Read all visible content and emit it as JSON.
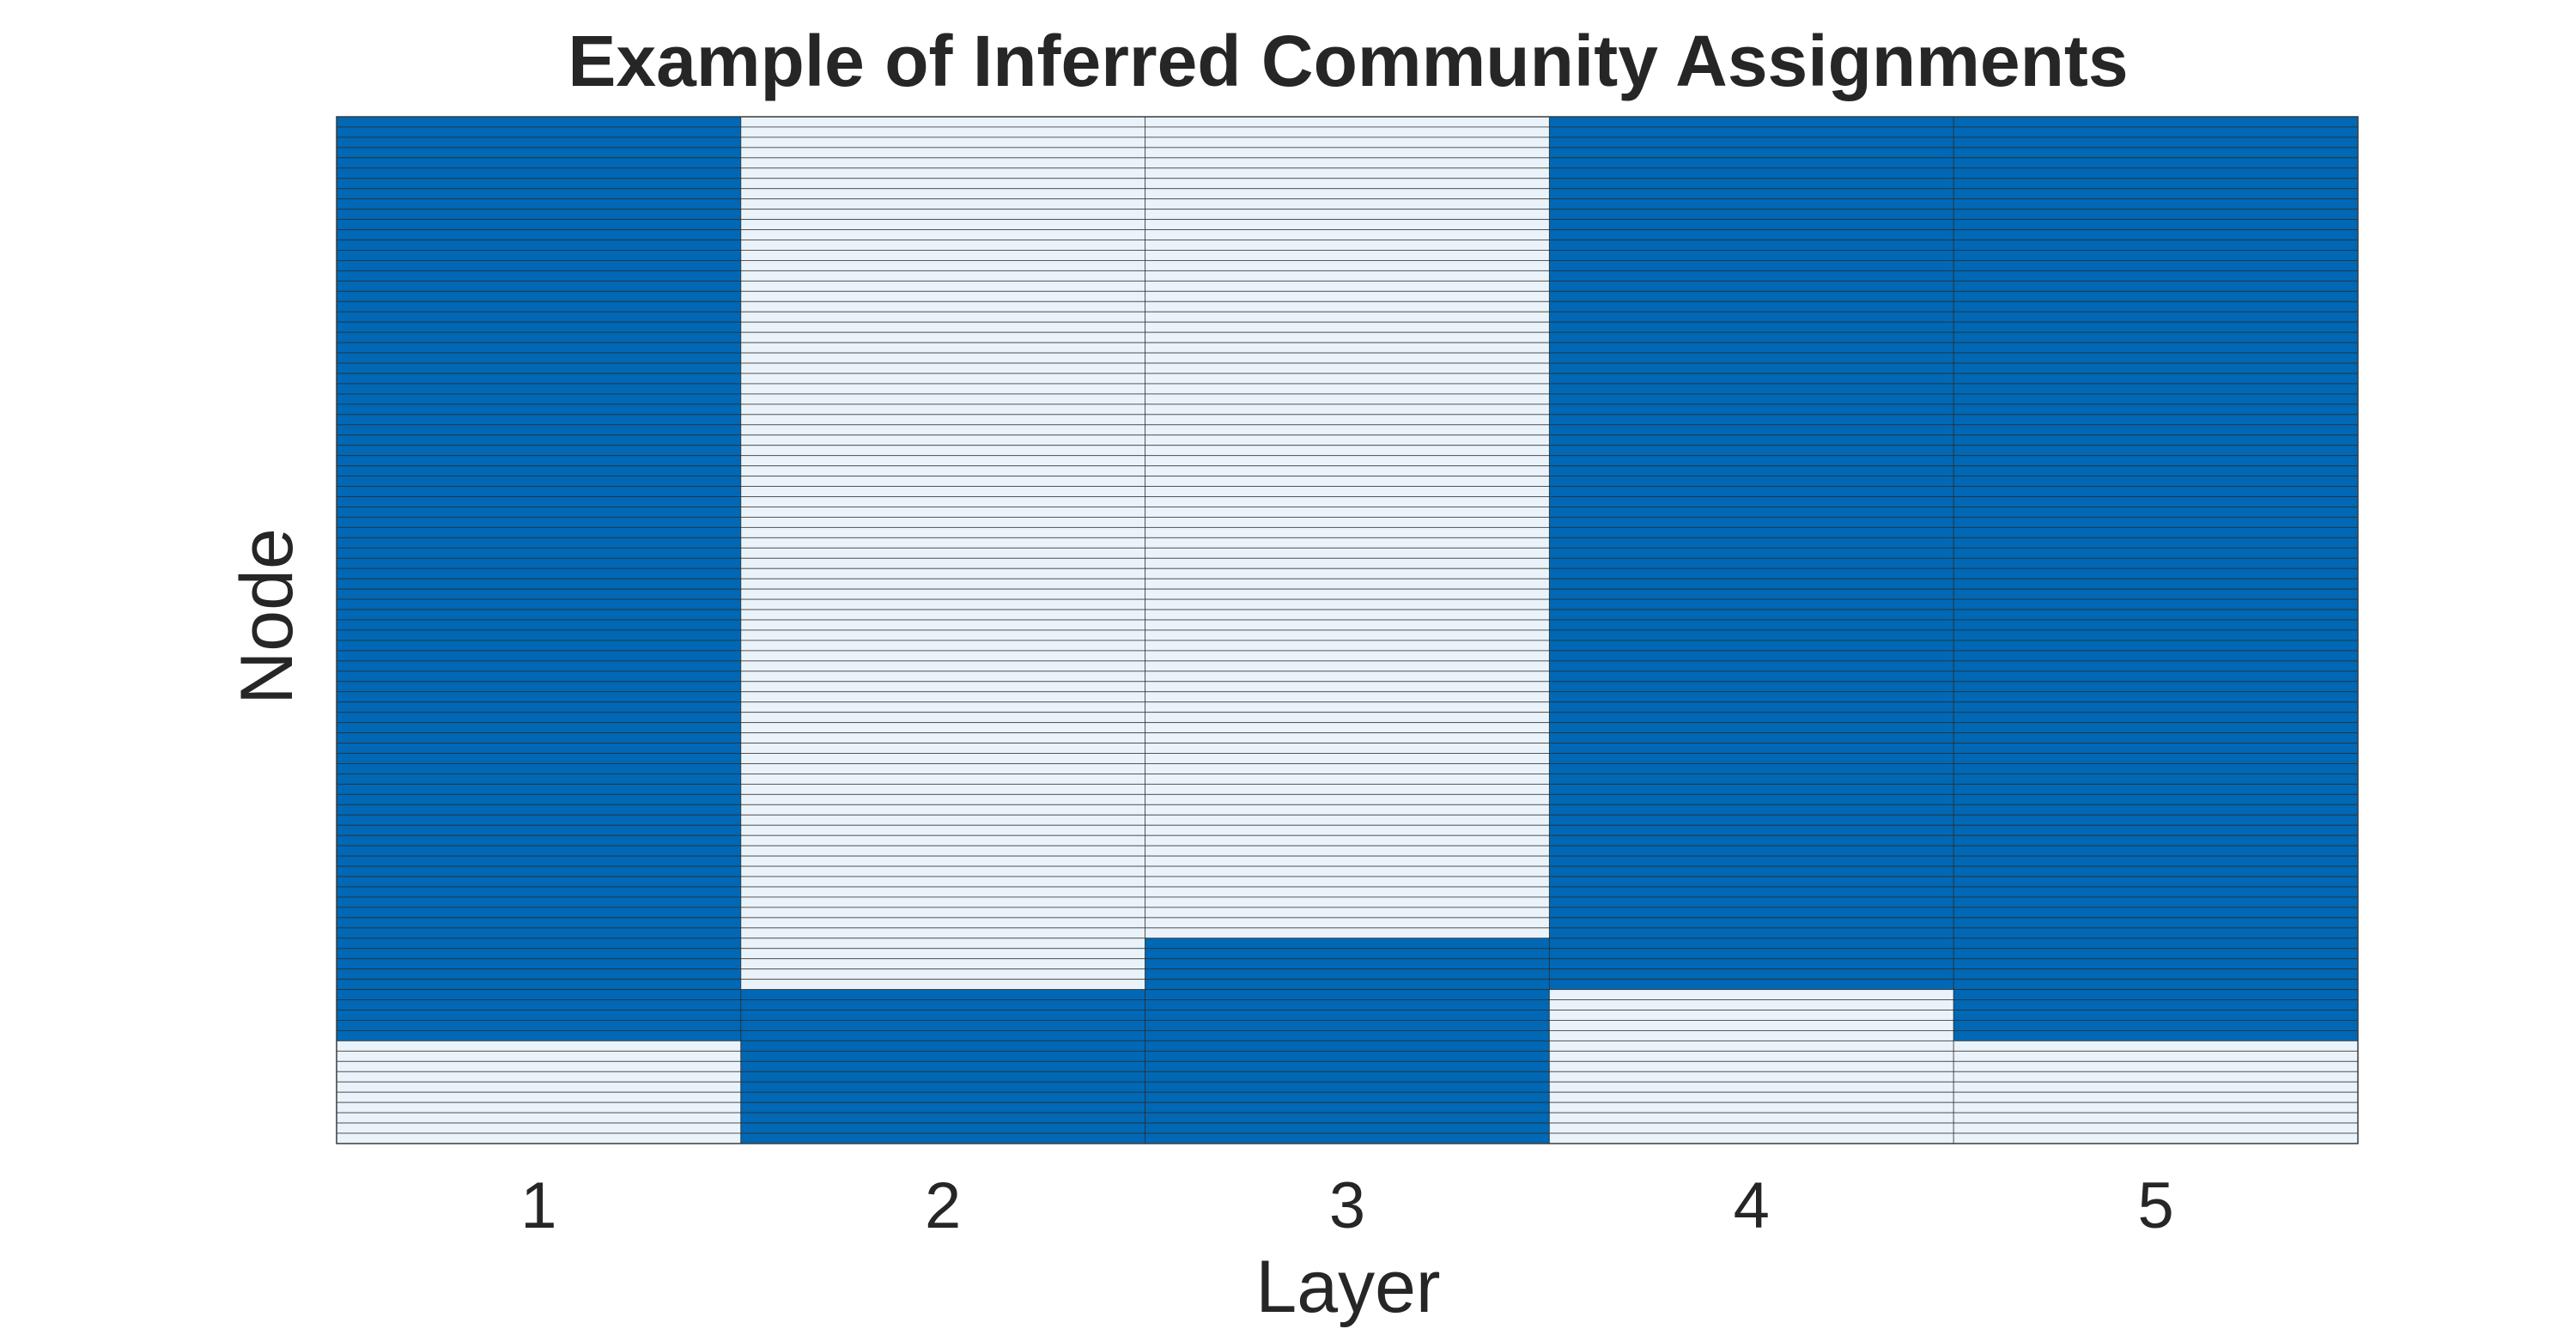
{
  "chart_data": {
    "type": "heatmap",
    "title": "Example of Inferred Community Assignments",
    "xlabel": "Layer",
    "ylabel": "Node",
    "x_categories": [
      "1",
      "2",
      "3",
      "4",
      "5"
    ],
    "n_nodes": 100,
    "grid": true,
    "legend": "none",
    "communities": [
      {
        "id": 1,
        "color": "#0068B5"
      },
      {
        "id": 2,
        "color": "#EAF3FA"
      }
    ],
    "layers": [
      {
        "layer": "1",
        "segments": [
          {
            "community": 1,
            "nodes": 90
          },
          {
            "community": 2,
            "nodes": 10
          }
        ]
      },
      {
        "layer": "2",
        "segments": [
          {
            "community": 2,
            "nodes": 85
          },
          {
            "community": 1,
            "nodes": 15
          }
        ]
      },
      {
        "layer": "3",
        "segments": [
          {
            "community": 2,
            "nodes": 80
          },
          {
            "community": 1,
            "nodes": 20
          }
        ]
      },
      {
        "layer": "4",
        "segments": [
          {
            "community": 1,
            "nodes": 85
          },
          {
            "community": 2,
            "nodes": 15
          }
        ]
      },
      {
        "layer": "5",
        "segments": [
          {
            "community": 1,
            "nodes": 90
          },
          {
            "community": 2,
            "nodes": 10
          }
        ]
      }
    ]
  }
}
